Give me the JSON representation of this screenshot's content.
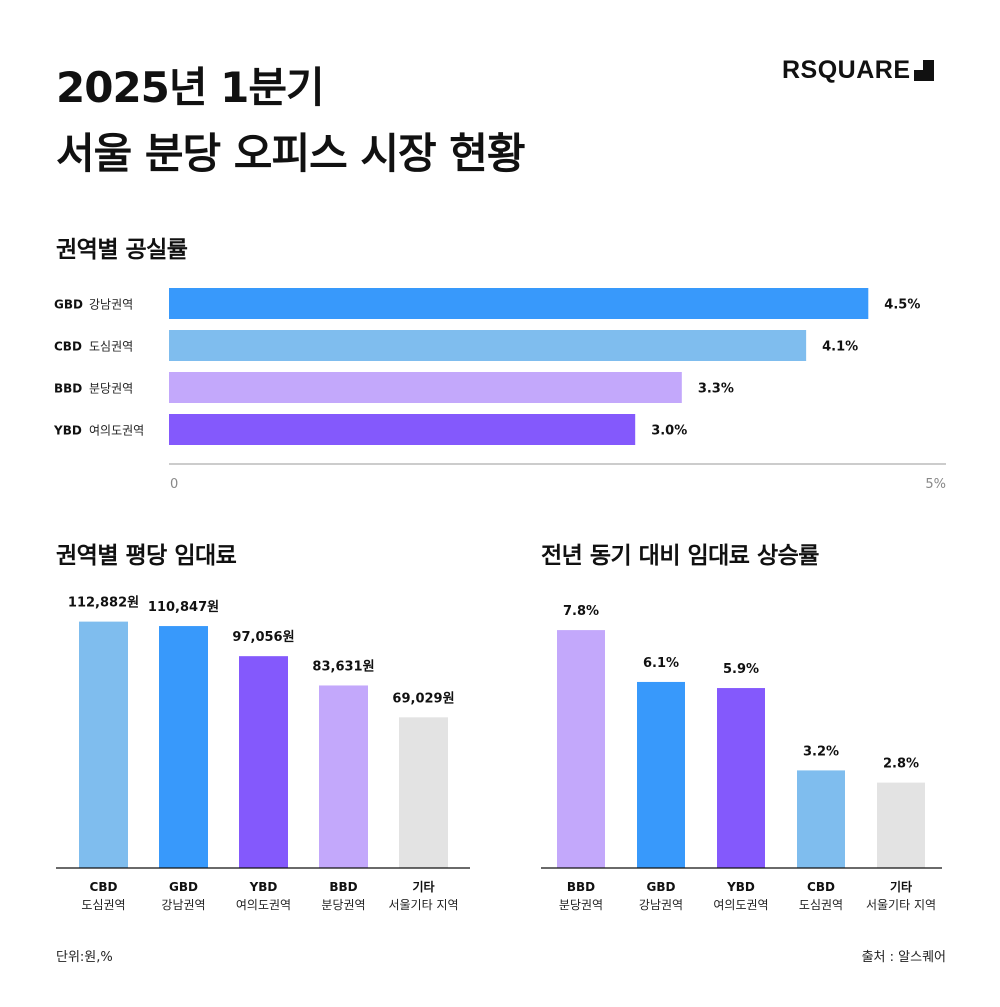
{
  "header": {
    "title_line1": "2025년 1분기",
    "title_line2": "서울 분당 오피스 시장 현황",
    "logo_text": "RSQUARE"
  },
  "footer": {
    "unit_note": "단위:원,%",
    "source_note": "출처 : 알스퀘어"
  },
  "chart_data": [
    {
      "type": "bar",
      "orientation": "horizontal",
      "title": "권역별 공실률",
      "categories": [
        {
          "code": "GBD",
          "name": "강남권역"
        },
        {
          "code": "CBD",
          "name": "도심권역"
        },
        {
          "code": "BBD",
          "name": "분당권역"
        },
        {
          "code": "YBD",
          "name": "여의도권역"
        }
      ],
      "values": [
        4.5,
        4.1,
        3.3,
        3.0
      ],
      "value_labels": [
        "4.5%",
        "4.1%",
        "3.3%",
        "3.0%"
      ],
      "colors": [
        "#3899fb",
        "#7fbdee",
        "#c3a8fb",
        "#8459fc"
      ],
      "xlim": [
        0,
        5
      ],
      "tick_labels": [
        "0",
        "5%"
      ],
      "grid": false
    },
    {
      "type": "bar",
      "title": "권역별 평당 임대료",
      "categories": [
        {
          "code": "CBD",
          "name": "도심권역"
        },
        {
          "code": "GBD",
          "name": "강남권역"
        },
        {
          "code": "YBD",
          "name": "여의도권역"
        },
        {
          "code": "BBD",
          "name": "분당권역"
        },
        {
          "code": "기타",
          "name": "서울기타 지역"
        }
      ],
      "values": [
        112882,
        110847,
        97056,
        83631,
        69029
      ],
      "value_labels": [
        "112,882원",
        "110,847원",
        "97,056원",
        "83,631원",
        "69,029원"
      ],
      "colors": [
        "#7fbdee",
        "#3899fb",
        "#8459fc",
        "#c3a8fb",
        "#e3e3e3"
      ],
      "ylim": [
        0,
        115000
      ],
      "grid": false
    },
    {
      "type": "bar",
      "title": "전년 동기 대비 임대료 상승률",
      "categories": [
        {
          "code": "BBD",
          "name": "분당권역"
        },
        {
          "code": "GBD",
          "name": "강남권역"
        },
        {
          "code": "YBD",
          "name": "여의도권역"
        },
        {
          "code": "CBD",
          "name": "도심권역"
        },
        {
          "code": "기타",
          "name": "서울기타 지역"
        }
      ],
      "values": [
        7.8,
        6.1,
        5.9,
        3.2,
        2.8
      ],
      "value_labels": [
        "7.8%",
        "6.1%",
        "5.9%",
        "3.2%",
        "2.8%"
      ],
      "colors": [
        "#c3a8fb",
        "#3899fb",
        "#8459fc",
        "#7fbdee",
        "#e3e3e3"
      ],
      "ylim": [
        0,
        8
      ],
      "grid": false
    }
  ]
}
